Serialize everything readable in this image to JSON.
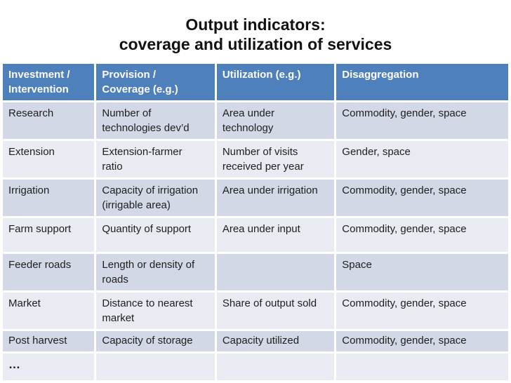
{
  "slide": {
    "title": {
      "line1": "Output indicators:",
      "line2": "coverage and utilization of services"
    },
    "colors": {
      "header_bg": "#4E80BC",
      "header_text": "#FFFFFF",
      "band_dark": "#D2D8E6",
      "band_light": "#E9EBF2",
      "body_text": "#1E1E1E",
      "background": "#FFFFFF"
    },
    "table": {
      "headers": [
        "Investment /\nIntervention",
        "Provision /\nCoverage (e.g.)",
        "Utilization (e.g.)",
        "Disaggregation"
      ],
      "rows": [
        [
          "Research",
          "Number of\ntechnologies dev’d",
          "Area under\ntechnology",
          "Commodity, gender, space"
        ],
        [
          "Extension",
          "Extension-farmer\nratio",
          "Number of visits\nreceived per year",
          "Gender, space"
        ],
        [
          "Irrigation",
          "Capacity of irrigation\n(irrigable area)",
          "Area under irrigation",
          "Commodity, gender, space"
        ],
        [
          "Farm support",
          "Quantity of support",
          "Area under input",
          "Commodity, gender, space"
        ],
        [
          "Feeder roads",
          "Length or density of\nroads",
          "",
          "Space"
        ],
        [
          "Market",
          "Distance to nearest\nmarket",
          "Share of output sold",
          "Commodity, gender, space"
        ],
        [
          "Post harvest",
          "Capacity of storage",
          "Capacity utilized",
          "Commodity, gender, space"
        ],
        [
          "…",
          "",
          "",
          ""
        ]
      ]
    }
  }
}
